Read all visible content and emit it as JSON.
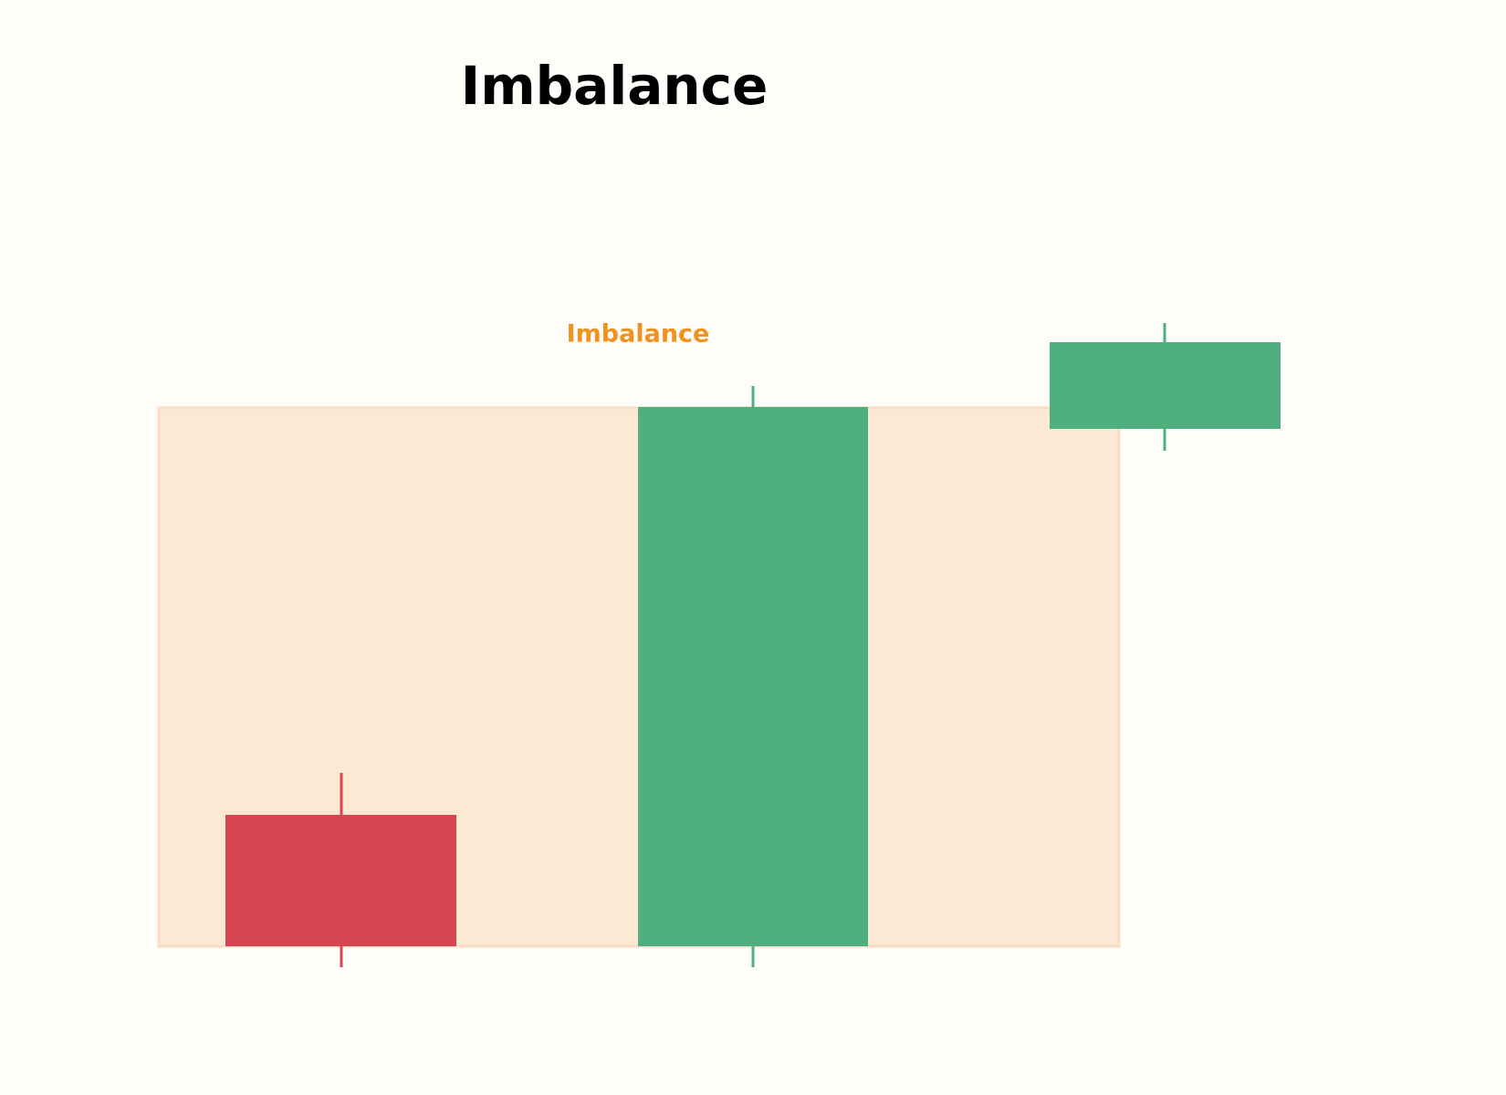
{
  "title": "Imbalance",
  "zone": {
    "label": "Imbalance"
  }
}
